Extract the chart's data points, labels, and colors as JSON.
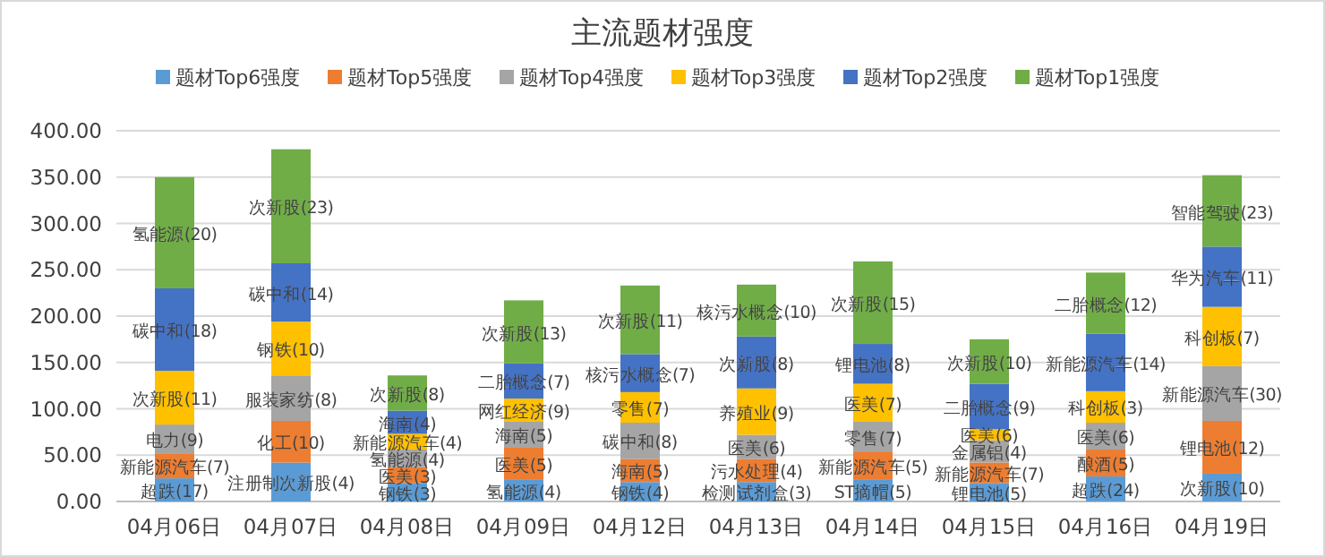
{
  "chart_data": {
    "type": "bar",
    "stacked": true,
    "title": "主流题材强度",
    "categories": [
      "04月06日",
      "04月07日",
      "04月08日",
      "04月09日",
      "04月12日",
      "04月13日",
      "04月14日",
      "04月15日",
      "04月16日",
      "04月19日"
    ],
    "series": [
      {
        "name": "题材Top6强度",
        "color": "#5b9bd5",
        "values": [
          25,
          42,
          20,
          24,
          21,
          21,
          24,
          20,
          27,
          30
        ],
        "value_labels": [
          "超跌(17)",
          "注册制次新股(4)",
          "钢铁(3)",
          "氢能源(4)",
          "钢铁(4)",
          "检测试剂盒(3)",
          "ST摘帽(5)",
          "锂电池(5)",
          "超跌(24)",
          "次新股(10)"
        ]
      },
      {
        "name": "题材Top5强度",
        "color": "#ed7d31",
        "values": [
          27,
          45,
          17,
          34,
          25,
          25,
          30,
          22,
          29,
          57
        ],
        "value_labels": [
          "新能源汽车(7)",
          "化工(10)",
          "医美(3)",
          "医美(5)",
          "海南(5)",
          "污水处理(4)",
          "新能源汽车(5)",
          "新能源汽车(7)",
          "酿酒(5)",
          "锂电池(12)"
        ]
      },
      {
        "name": "题材Top4强度",
        "color": "#a5a5a5",
        "values": [
          31,
          49,
          19,
          28,
          39,
          26,
          32,
          24,
          29,
          59
        ],
        "value_labels": [
          "电力(9)",
          "服装家纺(8)",
          "氢能源(4)",
          "海南(5)",
          "碳中和(8)",
          "医美(6)",
          "零售(7)",
          "金属铝(4)",
          "医美(6)",
          "新能源汽车(30)"
        ]
      },
      {
        "name": "题材Top3强度",
        "color": "#ffc000",
        "values": [
          58,
          58,
          17,
          25,
          33,
          50,
          41,
          12,
          34,
          64
        ],
        "value_labels": [
          "次新股(11)",
          "钢铁(10)",
          "新能源汽车(4)",
          "网红经济(9)",
          "零售(7)",
          "养殖业(9)",
          "医美(7)",
          "医美(6)",
          "科创板(3)",
          "科创板(7)"
        ]
      },
      {
        "name": "题材Top2强度",
        "color": "#4472c4",
        "values": [
          89,
          63,
          25,
          38,
          41,
          56,
          43,
          49,
          62,
          65
        ],
        "value_labels": [
          "碳中和(18)",
          "碳中和(14)",
          "海南(4)",
          "二胎概念(7)",
          "核污水概念(7)",
          "次新股(8)",
          "锂电池(8)",
          "二胎概念(9)",
          "新能源汽车(14)",
          "华为汽车(11)"
        ]
      },
      {
        "name": "题材Top1强度",
        "color": "#70ad47",
        "values": [
          120,
          123,
          38,
          68,
          74,
          56,
          89,
          48,
          66,
          77
        ],
        "value_labels": [
          "氢能源(20)",
          "次新股(23)",
          "次新股(8)",
          "次新股(13)",
          "次新股(11)",
          "核污水概念(10)",
          "次新股(15)",
          "次新股(10)",
          "二胎概念(12)",
          "智能驾驶(23)"
        ]
      }
    ],
    "ylim": [
      0,
      400
    ],
    "yticks": [
      {
        "value": 0,
        "label": "0.00"
      },
      {
        "value": 50,
        "label": "50.00"
      },
      {
        "value": 100,
        "label": "100.00"
      },
      {
        "value": 150,
        "label": "150.00"
      },
      {
        "value": 200,
        "label": "200.00"
      },
      {
        "value": 250,
        "label": "250.00"
      },
      {
        "value": 300,
        "label": "300.00"
      },
      {
        "value": 350,
        "label": "350.00"
      },
      {
        "value": 400,
        "label": "400.00"
      }
    ],
    "grid": "y",
    "legend": "top"
  }
}
